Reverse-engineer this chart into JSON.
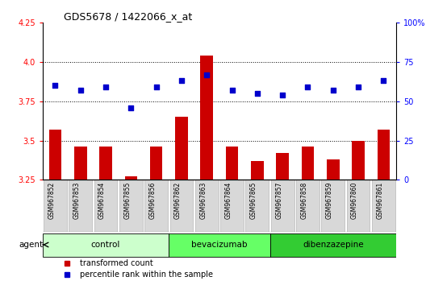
{
  "title": "GDS5678 / 1422066_x_at",
  "samples": [
    "GSM967852",
    "GSM967853",
    "GSM967854",
    "GSM967855",
    "GSM967856",
    "GSM967862",
    "GSM967863",
    "GSM967864",
    "GSM967865",
    "GSM967857",
    "GSM967858",
    "GSM967859",
    "GSM967860",
    "GSM967861"
  ],
  "bar_values": [
    3.57,
    3.46,
    3.46,
    3.27,
    3.46,
    3.65,
    4.04,
    3.46,
    3.37,
    3.42,
    3.46,
    3.38,
    3.5,
    3.57
  ],
  "dot_values": [
    60,
    57,
    59,
    46,
    59,
    63,
    67,
    57,
    55,
    54,
    59,
    57,
    59,
    63
  ],
  "ylim_left": [
    3.25,
    4.25
  ],
  "ylim_right": [
    0,
    100
  ],
  "yticks_left": [
    3.25,
    3.5,
    3.75,
    4.0,
    4.25
  ],
  "yticks_right": [
    0,
    25,
    50,
    75,
    100
  ],
  "ytick_labels_right": [
    "0",
    "25",
    "50",
    "75",
    "100%"
  ],
  "bar_color": "#cc0000",
  "dot_color": "#0000cc",
  "groups": [
    {
      "label": "control",
      "start": 0,
      "end": 5,
      "color": "#ccffcc"
    },
    {
      "label": "bevacizumab",
      "start": 5,
      "end": 9,
      "color": "#66ff66"
    },
    {
      "label": "dibenzazepine",
      "start": 9,
      "end": 14,
      "color": "#33cc33"
    }
  ],
  "legend_bar_label": "transformed count",
  "legend_dot_label": "percentile rank within the sample",
  "agent_label": "agent",
  "dotgrid_lines": [
    3.5,
    3.75,
    4.0
  ],
  "sample_box_color": "#d8d8d8",
  "sample_box_edge": "#aaaaaa"
}
